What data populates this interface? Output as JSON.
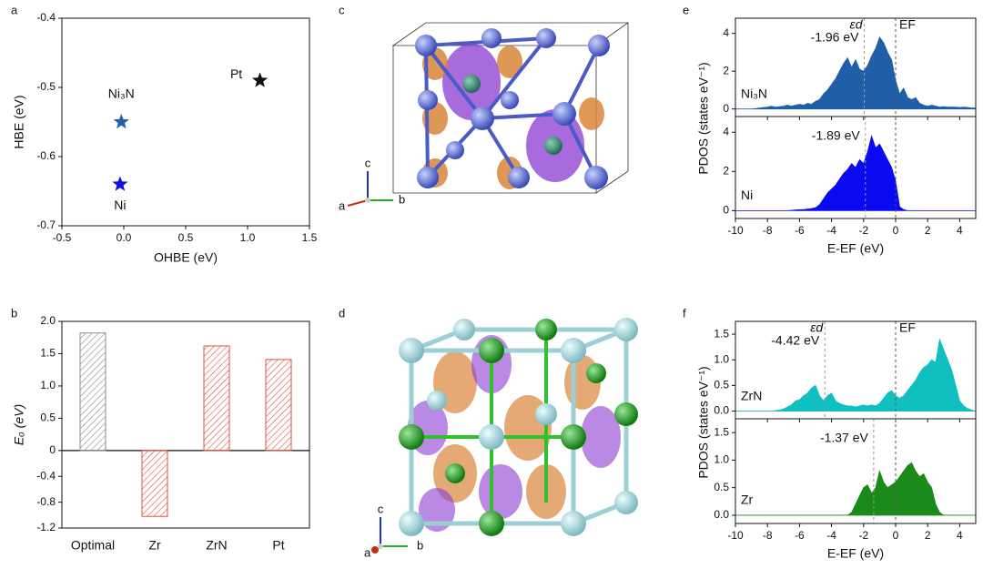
{
  "chart_data": [
    {
      "type": "scatter",
      "panel_label": "a",
      "xlabel": "OHBE (eV)",
      "ylabel": "HBE (eV)",
      "xlim": [
        -0.5,
        1.5
      ],
      "xticks": [
        -0.5,
        {
          "value": 0,
          "label": "0.0"
        },
        0.5,
        {
          "value": 1,
          "label": "1.0"
        },
        1.5
      ],
      "ylim": [
        -0.7,
        -0.4
      ],
      "yticks": [
        -0.7,
        -0.6,
        -0.5,
        -0.4
      ],
      "series": [
        {
          "name": "Pt",
          "color": "#111111",
          "x": [
            1.1
          ],
          "values": [
            -0.49
          ]
        },
        {
          "name": "Ni₃N",
          "color": "#1f5fb0",
          "x": [
            -0.02
          ],
          "values": [
            -0.55
          ]
        },
        {
          "name": "Ni",
          "color": "#1010e0",
          "x": [
            -0.03
          ],
          "values": [
            -0.64
          ]
        }
      ]
    },
    {
      "type": "bar",
      "panel_label": "b",
      "ylabel": "Eₒ (eV)",
      "categories": [
        "Optimal",
        "Zr",
        "ZrN",
        "Pt"
      ],
      "values": [
        1.82,
        -1.02,
        1.62,
        1.41
      ],
      "colors": [
        "#8a8a8a",
        "#e0503c",
        "#e0503c",
        "#e0503c"
      ],
      "ylim": [
        -1.2,
        2.0
      ],
      "yticks": [
        -1.2,
        -0.8,
        -0.4,
        0,
        0.5,
        {
          "value": 1,
          "label": "1.0"
        },
        1.5,
        {
          "value": 2,
          "label": "2.0"
        }
      ]
    },
    {
      "type": "pdos",
      "panel_label": "e",
      "xlabel": "E-EF (eV)",
      "ylabel": "PDOS (states eV⁻¹)",
      "d_band_symbol": "εd",
      "fermi_label": "EF",
      "fermi_level": 0,
      "xlim": [
        -10,
        5
      ],
      "xticks": [
        -10,
        -8,
        -6,
        -4,
        -2,
        0,
        2,
        4
      ],
      "x": [
        -10,
        -9.75,
        -9.5,
        -9.25,
        -9,
        -8.75,
        -8.5,
        -8.25,
        -8,
        -7.75,
        -7.5,
        -7.25,
        -7,
        -6.75,
        -6.5,
        -6.25,
        -6,
        -5.75,
        -5.5,
        -5.25,
        -5,
        -4.75,
        -4.5,
        -4.25,
        -4,
        -3.75,
        -3.5,
        -3.25,
        -3,
        -2.75,
        -2.5,
        -2.25,
        -2,
        -1.75,
        -1.5,
        -1.25,
        -1,
        -0.75,
        -0.5,
        -0.25,
        0,
        0.25,
        0.5,
        0.75,
        1,
        1.25,
        1.5,
        1.75,
        2,
        2.25,
        2.5,
        2.75,
        3,
        3.25,
        3.5,
        3.75,
        4,
        4.25,
        4.5,
        4.75,
        5
      ],
      "series": [
        {
          "name": "Ni₃N",
          "color": "#1f5fa8",
          "ylim": [
            -0.4,
            4.8
          ],
          "yticks": [
            0,
            2,
            4
          ],
          "d_band_center": -1.96,
          "d_band_label": "-1.96 eV",
          "values": [
            0,
            0,
            0,
            0,
            0,
            0.02,
            0.05,
            0.08,
            0.1,
            0.15,
            0.1,
            0.12,
            0.15,
            0.2,
            0.15,
            0.2,
            0.25,
            0.2,
            0.3,
            0.25,
            0.4,
            0.5,
            0.8,
            1.0,
            1.3,
            1.6,
            2.0,
            2.4,
            2.7,
            2.2,
            2.6,
            2.1,
            2.0,
            2.3,
            2.8,
            3.2,
            3.8,
            3.5,
            3.0,
            2.6,
            1.5,
            0.8,
            1.1,
            0.6,
            0.5,
            0.6,
            0.3,
            0.2,
            0.15,
            0.2,
            0.15,
            0.1,
            0.12,
            0.1,
            0.1,
            0.1,
            0.08,
            0.1,
            0.08,
            0.05,
            0.05
          ]
        },
        {
          "name": "Ni",
          "color": "#0a0af0",
          "ylim": [
            -0.4,
            4.8
          ],
          "yticks": [
            0,
            2,
            4
          ],
          "d_band_center": -1.89,
          "d_band_label": "-1.89 eV",
          "values": [
            0,
            0,
            0,
            0,
            0,
            0,
            0,
            0,
            0,
            0,
            0,
            0,
            0,
            0,
            0.02,
            0.03,
            0.05,
            0.05,
            0.08,
            0.1,
            0.15,
            0.3,
            0.6,
            0.9,
            1.1,
            1.3,
            1.6,
            1.9,
            2.1,
            2.4,
            2.2,
            2.6,
            2.4,
            3.0,
            3.8,
            3.2,
            3.4,
            3.0,
            2.6,
            2.2,
            1.5,
            0.2,
            0.05,
            0,
            0,
            0,
            0,
            0,
            0,
            0,
            0,
            0,
            0,
            0,
            0,
            0,
            0,
            0,
            0,
            0,
            0
          ]
        }
      ]
    },
    {
      "type": "pdos",
      "panel_label": "f",
      "xlabel": "E-EF (eV)",
      "ylabel": "PDOS (states eV⁻¹)",
      "d_band_symbol": "εd",
      "fermi_label": "EF",
      "fermi_level": 0,
      "xlim": [
        -10,
        5
      ],
      "xticks": [
        -10,
        -8,
        -6,
        -4,
        -2,
        0,
        2,
        4
      ],
      "x": [
        -10,
        -9.75,
        -9.5,
        -9.25,
        -9,
        -8.75,
        -8.5,
        -8.25,
        -8,
        -7.75,
        -7.5,
        -7.25,
        -7,
        -6.75,
        -6.5,
        -6.25,
        -6,
        -5.75,
        -5.5,
        -5.25,
        -5,
        -4.75,
        -4.5,
        -4.25,
        -4,
        -3.75,
        -3.5,
        -3.25,
        -3,
        -2.75,
        -2.5,
        -2.25,
        -2,
        -1.75,
        -1.5,
        -1.25,
        -1,
        -0.75,
        -0.5,
        -0.25,
        0,
        0.25,
        0.5,
        0.75,
        1,
        1.25,
        1.5,
        1.75,
        2,
        2.25,
        2.5,
        2.75,
        3,
        3.25,
        3.5,
        3.75,
        4,
        4.25,
        4.5,
        4.75,
        5
      ],
      "series": [
        {
          "name": "ZrN",
          "color": "#10c0c0",
          "ylim": [
            -0.15,
            1.75
          ],
          "yticks": [
            {
              "value": 0,
              "label": "0.0"
            },
            0.5,
            {
              "value": 1,
              "label": "1.0"
            },
            1.5
          ],
          "d_band_center": -4.42,
          "d_band_label": "-4.42 eV",
          "values": [
            0,
            0,
            0,
            0,
            0,
            0,
            0,
            0,
            0,
            0,
            0.01,
            0.02,
            0.04,
            0.08,
            0.12,
            0.2,
            0.22,
            0.3,
            0.35,
            0.45,
            0.5,
            0.3,
            0.2,
            0.3,
            0.35,
            0.2,
            0.15,
            0.12,
            0.1,
            0.1,
            0.08,
            0.1,
            0.12,
            0.1,
            0.12,
            0.1,
            0.15,
            0.25,
            0.35,
            0.4,
            0.3,
            0.25,
            0.3,
            0.4,
            0.5,
            0.6,
            0.75,
            0.85,
            0.9,
            1.0,
            0.95,
            1.4,
            1.2,
            1.0,
            0.8,
            0.5,
            0.2,
            0.1,
            0.05,
            0.02,
            0
          ]
        },
        {
          "name": "Zr",
          "color": "#1a8a1a",
          "ylim": [
            -0.15,
            1.75
          ],
          "yticks": [
            {
              "value": 0,
              "label": "0.0"
            },
            0.5,
            {
              "value": 1,
              "label": "1.0"
            },
            1.5
          ],
          "d_band_center": -1.37,
          "d_band_label": "-1.37 eV",
          "values": [
            0,
            0,
            0,
            0,
            0,
            0,
            0,
            0,
            0,
            0,
            0,
            0,
            0,
            0,
            0,
            0,
            0,
            0,
            0,
            0,
            0,
            0,
            0,
            0,
            0,
            0,
            0,
            0,
            0,
            0.05,
            0.2,
            0.35,
            0.5,
            0.55,
            0.4,
            0.5,
            0.8,
            0.6,
            0.5,
            0.55,
            0.6,
            0.7,
            0.8,
            0.9,
            0.95,
            0.8,
            0.7,
            0.75,
            0.6,
            0.5,
            0.2,
            0.05,
            0,
            0,
            0,
            0,
            0,
            0,
            0,
            0,
            0
          ]
        }
      ]
    }
  ],
  "structures": [
    {
      "panel_label": "c",
      "axes": [
        "c",
        "a",
        "b"
      ]
    },
    {
      "panel_label": "d",
      "axes": [
        "c",
        "a",
        "b"
      ]
    }
  ]
}
